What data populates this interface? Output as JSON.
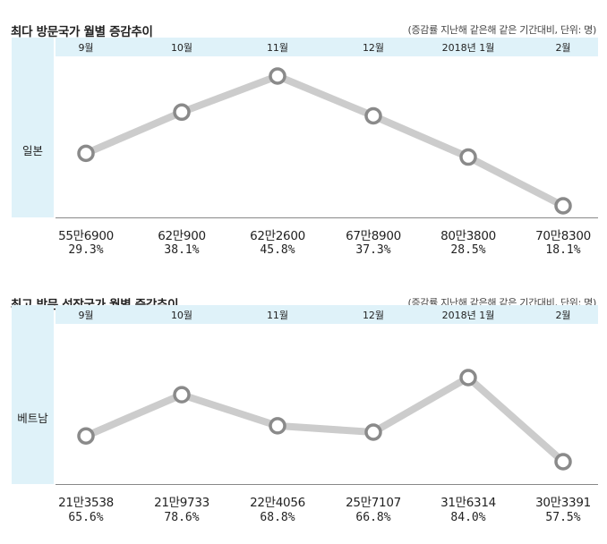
{
  "chart_data": [
    {
      "type": "line",
      "title": "최다 방문국가 월별 증감추이",
      "note": "(증감률 지난해 같은해 같은 기간대비, 단위: 명)",
      "series": [
        {
          "name": "일본",
          "values": [
            556900,
            620900,
            622600,
            678900,
            803800,
            708300
          ]
        }
      ],
      "categories": [
        "9월",
        "10월",
        "11월",
        "12월",
        "2018년 1월",
        "2월"
      ],
      "value_labels": [
        "55만6900",
        "62만900",
        "62만2600",
        "67만8900",
        "80만3800",
        "70만8300"
      ],
      "growth_rates": [
        29.3,
        38.1,
        45.8,
        37.3,
        28.5,
        18.1
      ],
      "growth_labels": [
        "29.3%",
        "38.1%",
        "45.8%",
        "37.3%",
        "28.5%",
        "18.1%"
      ],
      "plotted_line": "증감률",
      "line_color": "#cccccc",
      "marker_stroke": "#8a8a8a"
    },
    {
      "type": "line",
      "title": "최고 방문 성장국가 월별 증감추이",
      "note": "(증감률 지난해 같은해 같은 기간대비, 단위: 명)",
      "series": [
        {
          "name": "베트남",
          "values": [
            213538,
            219733,
            224056,
            257107,
            316314,
            303391
          ]
        }
      ],
      "categories": [
        "9월",
        "10월",
        "11월",
        "12월",
        "2018년 1월",
        "2월"
      ],
      "value_labels": [
        "21만3538",
        "21만9733",
        "22만4056",
        "25만7107",
        "31만6314",
        "30만3391"
      ],
      "growth_rates": [
        65.6,
        78.6,
        68.8,
        66.8,
        84.0,
        57.5
      ],
      "growth_labels": [
        "65.6%",
        "78.6%",
        "68.8%",
        "66.8%",
        "84.0%",
        "57.5%"
      ],
      "plotted_line": "증감률",
      "line_color": "#cccccc",
      "marker_stroke": "#8a8a8a"
    }
  ]
}
